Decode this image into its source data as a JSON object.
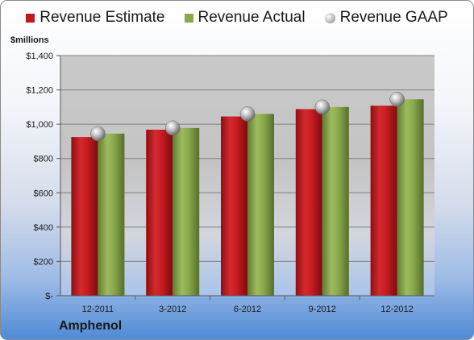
{
  "company": "Amphenol",
  "unit_label": "$millions",
  "colors": {
    "estimate": "#c0181e",
    "actual": "#8aa94d",
    "gaap": "#b8b8b8"
  },
  "chart_data": {
    "type": "bar",
    "categories": [
      "12-2011",
      "3-2012",
      "6-2012",
      "9-2012",
      "12-2012"
    ],
    "series": [
      {
        "name": "Revenue Estimate",
        "values": [
          925,
          968,
          1045,
          1088,
          1108
        ]
      },
      {
        "name": "Revenue Actual",
        "values": [
          945,
          978,
          1060,
          1100,
          1145
        ]
      },
      {
        "name": "Revenue GAAP",
        "values": [
          945,
          978,
          1060,
          1100,
          1145
        ],
        "marker": "sphere"
      }
    ],
    "ylim": [
      0,
      1400
    ],
    "y_ticks": [
      0,
      200,
      400,
      600,
      800,
      1000,
      1200,
      1400
    ],
    "y_tick_labels": [
      "$-",
      "$200",
      "$400",
      "$600",
      "$800",
      "$1,000",
      "$1,200",
      "$1,400"
    ],
    "legend_position": "top",
    "grid": true
  }
}
